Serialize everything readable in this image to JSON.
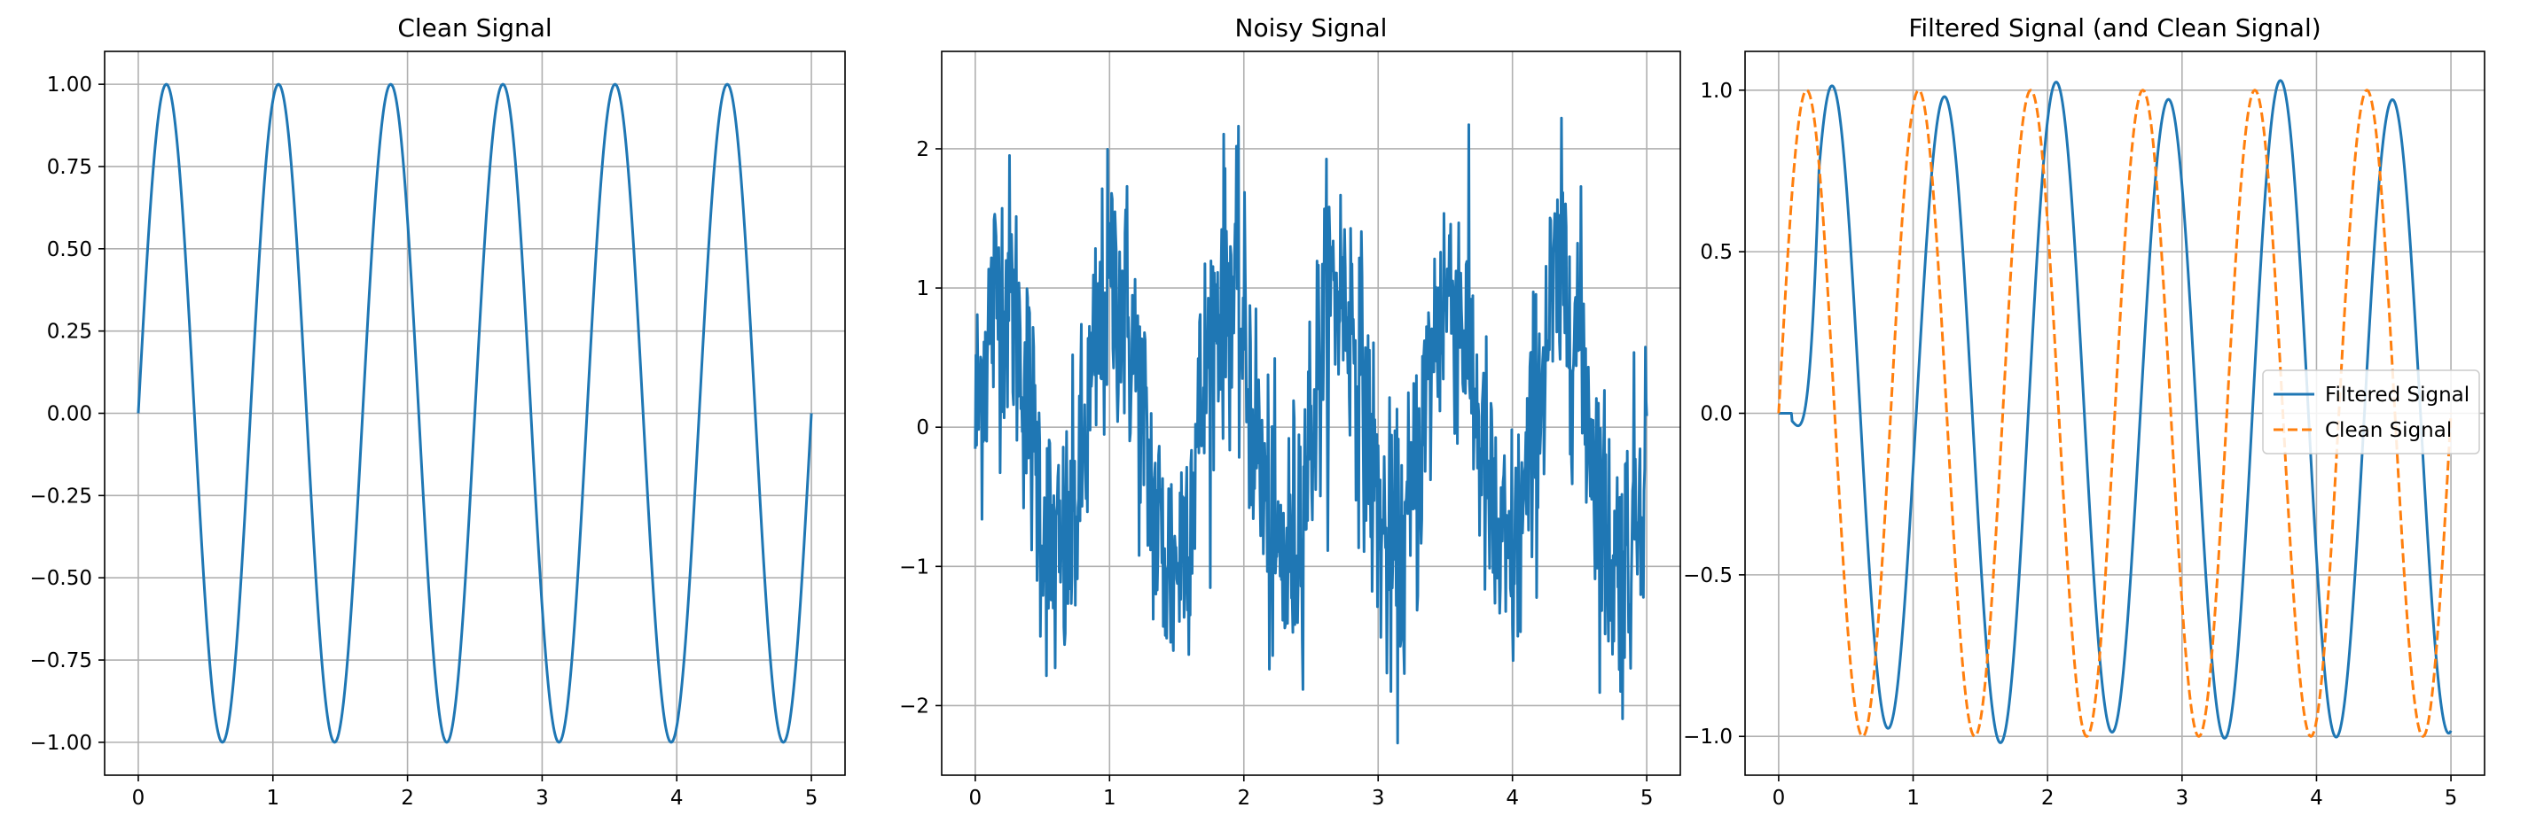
{
  "chart_data": [
    {
      "type": "line",
      "title": "Clean Signal",
      "xlabel": "",
      "ylabel": "",
      "xlim": [
        -0.25,
        5.25
      ],
      "ylim": [
        -1.1,
        1.1
      ],
      "xticks": [
        0,
        1,
        2,
        3,
        4,
        5
      ],
      "xtick_labels": [
        "0",
        "1",
        "2",
        "3",
        "4",
        "5"
      ],
      "yticks": [
        -1.0,
        -0.75,
        -0.5,
        -0.25,
        0.0,
        0.25,
        0.5,
        0.75,
        1.0
      ],
      "ytick_labels": [
        "−1.00",
        "−0.75",
        "−0.50",
        "−0.25",
        "0.00",
        "0.25",
        "0.50",
        "0.75",
        "1.00"
      ],
      "grid": true,
      "legend": null,
      "series": [
        {
          "color": "#1f77b4",
          "style": "solid",
          "description_x": [
            0,
            0.208,
            0.625,
            1.042,
            1.458,
            1.875,
            2.292,
            2.708,
            3.125,
            3.542,
            3.958,
            4.375,
            4.792,
            5.0
          ],
          "y": [
            0,
            1,
            -1,
            1,
            -1,
            1,
            -1,
            1,
            -1,
            1,
            -1,
            1,
            -1,
            0
          ]
        }
      ]
    },
    {
      "type": "line",
      "title": "Noisy Signal",
      "xlabel": "",
      "ylabel": "",
      "xlim": [
        -0.25,
        5.25
      ],
      "ylim": [
        -2.5,
        2.7
      ],
      "xticks": [
        0,
        1,
        2,
        3,
        4,
        5
      ],
      "xtick_labels": [
        "0",
        "1",
        "2",
        "3",
        "4",
        "5"
      ],
      "yticks": [
        -2,
        -1,
        0,
        1,
        2
      ],
      "ytick_labels": [
        "−2",
        "−1",
        "0",
        "1",
        "2"
      ],
      "grid": true,
      "legend": null,
      "series": [
        {
          "color": "#1f77b4",
          "style": "solid",
          "x": [
            0,
            0.208,
            0.625,
            1.042,
            1.458,
            1.875,
            2.292,
            2.708,
            3.125,
            3.542,
            3.958,
            4.375,
            4.792,
            5.0
          ],
          "y": [
            0.5,
            1.8,
            -1.6,
            1.9,
            -1.7,
            2.4,
            -2.1,
            1.8,
            -1.9,
            2.3,
            -2.2,
            2.0,
            -2.2,
            1.0
          ]
        }
      ]
    },
    {
      "type": "line",
      "title": "Filtered Signal (and Clean Signal)",
      "xlabel": "",
      "ylabel": "",
      "xlim": [
        -0.25,
        5.25
      ],
      "ylim": [
        -1.12,
        1.12
      ],
      "xticks": [
        0,
        1,
        2,
        3,
        4,
        5
      ],
      "xtick_labels": [
        "0",
        "1",
        "2",
        "3",
        "4",
        "5"
      ],
      "yticks": [
        -1.0,
        -0.5,
        0.0,
        0.5,
        1.0
      ],
      "ytick_labels": [
        "−1.0",
        "−0.5",
        "0.0",
        "0.5",
        "1.0"
      ],
      "grid": true,
      "legend": "center-right",
      "series": [
        {
          "name": "Filtered Signal",
          "color": "#1f77b4",
          "style": "solid",
          "x": [
            0,
            0.1,
            0.4,
            0.8,
            1.2,
            1.63,
            2.05,
            2.47,
            2.88,
            3.3,
            3.72,
            4.13,
            4.55,
            5.0
          ],
          "y": [
            0.0,
            0.0,
            0.95,
            -1.01,
            1.02,
            -0.98,
            1.02,
            -1.0,
            0.96,
            -1.02,
            0.96,
            -1.04,
            0.99,
            -0.96
          ]
        },
        {
          "name": "Clean Signal",
          "color": "#ff7f0e",
          "style": "dashed",
          "x": [
            0,
            0.208,
            0.625,
            1.042,
            1.458,
            1.875,
            2.292,
            2.708,
            3.125,
            3.542,
            3.958,
            4.375,
            4.792,
            5.0
          ],
          "y": [
            0,
            1,
            -1,
            1,
            -1,
            1,
            -1,
            1,
            -1,
            1,
            -1,
            1,
            -1,
            0
          ]
        }
      ]
    }
  ]
}
